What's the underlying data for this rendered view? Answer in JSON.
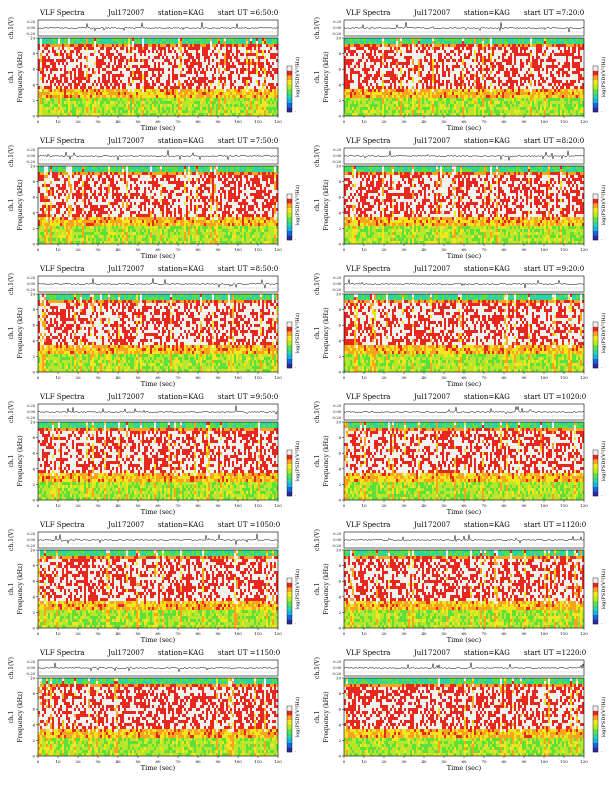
{
  "page": {
    "colors": {
      "colormap": [
        "#2a2aa0",
        "#1565d8",
        "#17b3e6",
        "#2ed4a0",
        "#5ee03c",
        "#b9e62a",
        "#f2e61c",
        "#f7a51f",
        "#e8281e",
        "#f2f2ee"
      ],
      "trace": "#000000",
      "background": "#ffffff"
    }
  },
  "panels": [
    {
      "title": "VLF Spectra",
      "date": "Jul172007",
      "station": "station=KAG",
      "start": "start  UT  =6:50:0",
      "ylabel_top": "ch.1(V)",
      "ytick_top": [
        "0.20",
        "0.00",
        "-0.20"
      ],
      "ylabel": "Frequency  (kHz)",
      "yticks": [
        "0",
        "2",
        "4",
        "6",
        "8",
        "10"
      ],
      "xlabel": "Time  (sec)",
      "xticks": [
        "0",
        "10",
        "20",
        "30",
        "40",
        "50",
        "60",
        "70",
        "80",
        "90",
        "100",
        "110",
        "120"
      ],
      "colorbar_label": "log(PSD)(V²/Hz)",
      "colorbar_ticks": [
        "-",
        "-"
      ]
    },
    {
      "title": "VLF Spectra",
      "date": "Jul172007",
      "station": "station=KAG",
      "start": "start  UT  =7:20:0",
      "ylabel_top": "ch.1(V)",
      "ytick_top": [
        "0.20",
        "0.00",
        "-0.20"
      ],
      "ylabel": "Frequency  (kHz)",
      "yticks": [
        "0",
        "2",
        "4",
        "6",
        "8",
        "10"
      ],
      "xlabel": "Time  (sec)",
      "xticks": [
        "0",
        "10",
        "20",
        "30",
        "40",
        "50",
        "60",
        "70",
        "80",
        "90",
        "100",
        "110",
        "120"
      ],
      "colorbar_label": "log(PSD)(V²/Hz)",
      "colorbar_ticks": [
        "-",
        "-"
      ]
    },
    {
      "title": "VLF Spectra",
      "date": "Jul172007",
      "station": "station=KAG",
      "start": "start  UT  =7:50:0",
      "ylabel_top": "ch.1(V)",
      "ytick_top": [
        "0.20",
        "0.00",
        "-0.20"
      ],
      "ylabel": "Frequency  (kHz)",
      "yticks": [
        "0",
        "2",
        "4",
        "6",
        "8",
        "10"
      ],
      "xlabel": "Time  (sec)",
      "xticks": [
        "0",
        "10",
        "20",
        "30",
        "40",
        "50",
        "60",
        "70",
        "80",
        "90",
        "100",
        "110",
        "120"
      ],
      "colorbar_label": "log(PSD)(V²/Hz)",
      "colorbar_ticks": [
        "-",
        "-"
      ]
    },
    {
      "title": "VLF Spectra",
      "date": "Jul172007",
      "station": "station=KAG",
      "start": "start  UT  =8:20:0",
      "ylabel_top": "ch.1(V)",
      "ytick_top": [
        "0.20",
        "0.00",
        "-0.20"
      ],
      "ylabel": "Frequency  (kHz)",
      "yticks": [
        "0",
        "2",
        "4",
        "6",
        "8",
        "10"
      ],
      "xlabel": "Time  (sec)",
      "xticks": [
        "0",
        "10",
        "20",
        "30",
        "40",
        "50",
        "60",
        "70",
        "80",
        "90",
        "100",
        "110",
        "120"
      ],
      "colorbar_label": "log(PSD)(V²/Hz)",
      "colorbar_ticks": [
        "-",
        "-"
      ]
    },
    {
      "title": "VLF Spectra",
      "date": "Jul172007",
      "station": "station=KAG",
      "start": "start  UT  =8:50:0",
      "ylabel_top": "ch.1(V)",
      "ytick_top": [
        "0.20",
        "0.00",
        "-0.20"
      ],
      "ylabel": "Frequency  (kHz)",
      "yticks": [
        "0",
        "2",
        "4",
        "6",
        "8",
        "10"
      ],
      "xlabel": "Time  (sec)",
      "xticks": [
        "0",
        "10",
        "20",
        "30",
        "40",
        "50",
        "60",
        "70",
        "80",
        "90",
        "100",
        "110",
        "120"
      ],
      "colorbar_label": "log(PSD)(V²/Hz)",
      "colorbar_ticks": [
        "-",
        "-"
      ]
    },
    {
      "title": "VLF Spectra",
      "date": "Jul172007",
      "station": "station=KAG",
      "start": "start  UT  =9:20:0",
      "ylabel_top": "ch.1(V)",
      "ytick_top": [
        "0.20",
        "0.00",
        "-0.20"
      ],
      "ylabel": "Frequency  (kHz)",
      "yticks": [
        "0",
        "2",
        "4",
        "6",
        "8",
        "10"
      ],
      "xlabel": "Time  (sec)",
      "xticks": [
        "0",
        "10",
        "20",
        "30",
        "40",
        "50",
        "60",
        "70",
        "80",
        "90",
        "100",
        "110",
        "120"
      ],
      "colorbar_label": "log(PSD)(V²/Hz)",
      "colorbar_ticks": [
        "-",
        "-"
      ]
    },
    {
      "title": "VLF Spectra",
      "date": "Jul172007",
      "station": "station=KAG",
      "start": "start  UT  =9:50:0",
      "ylabel_top": "ch.1(V)",
      "ytick_top": [
        "0.20",
        "0.00",
        "-0.20"
      ],
      "ylabel": "Frequency  (kHz)",
      "yticks": [
        "0",
        "2",
        "4",
        "6",
        "8",
        "10"
      ],
      "xlabel": "Time  (sec)",
      "xticks": [
        "0",
        "10",
        "20",
        "30",
        "40",
        "50",
        "60",
        "70",
        "80",
        "90",
        "100",
        "110",
        "120"
      ],
      "colorbar_label": "log(PSD)(V²/Hz)",
      "colorbar_ticks": [
        "-",
        "-"
      ]
    },
    {
      "title": "VLF Spectra",
      "date": "Jul172007",
      "station": "station=KAG",
      "start": "start  UT  =1020:0",
      "ylabel_top": "ch.1(V)",
      "ytick_top": [
        "0.20",
        "0.00",
        "-0.20"
      ],
      "ylabel": "Frequency  (kHz)",
      "yticks": [
        "0",
        "2",
        "4",
        "6",
        "8",
        "10"
      ],
      "xlabel": "Time  (sec)",
      "xticks": [
        "0",
        "10",
        "20",
        "30",
        "40",
        "50",
        "60",
        "70",
        "80",
        "90",
        "100",
        "110",
        "120"
      ],
      "colorbar_label": "log(PSD)(V²/Hz)",
      "colorbar_ticks": [
        "-",
        "-"
      ]
    },
    {
      "title": "VLF Spectra",
      "date": "Jul172007",
      "station": "station=KAG",
      "start": "start  UT  =1050:0",
      "ylabel_top": "ch.1(V)",
      "ytick_top": [
        "0.20",
        "0.00",
        "-0.20"
      ],
      "ylabel": "Frequency  (kHz)",
      "yticks": [
        "0",
        "2",
        "4",
        "6",
        "8",
        "10"
      ],
      "xlabel": "Time  (sec)",
      "xticks": [
        "0",
        "10",
        "20",
        "30",
        "40",
        "50",
        "60",
        "70",
        "80",
        "90",
        "100",
        "110",
        "120"
      ],
      "colorbar_label": "log(PSD)(V²/Hz)",
      "colorbar_ticks": [
        "-",
        "-"
      ]
    },
    {
      "title": "VLF Spectra",
      "date": "Jul172007",
      "station": "station=KAG",
      "start": "start  UT  =1120:0",
      "ylabel_top": "ch.1(V)",
      "ytick_top": [
        "0.20",
        "0.00",
        "-0.20"
      ],
      "ylabel": "Frequency  (kHz)",
      "yticks": [
        "0",
        "2",
        "4",
        "6",
        "8",
        "10"
      ],
      "xlabel": "Time  (sec)",
      "xticks": [
        "0",
        "10",
        "20",
        "30",
        "40",
        "50",
        "60",
        "70",
        "80",
        "90",
        "100",
        "110",
        "120"
      ],
      "colorbar_label": "log(PSD)(V²/Hz)",
      "colorbar_ticks": [
        "-",
        "-"
      ]
    },
    {
      "title": "VLF Spectra",
      "date": "Jul172007",
      "station": "station=KAG",
      "start": "start  UT  =1150:0",
      "ylabel_top": "ch.1(V)",
      "ytick_top": [
        "0.20",
        "0.00",
        "-0.20"
      ],
      "ylabel": "Frequency  (kHz)",
      "yticks": [
        "0",
        "2",
        "4",
        "6",
        "8",
        "10"
      ],
      "xlabel": "Time  (sec)",
      "xticks": [
        "0",
        "10",
        "20",
        "30",
        "40",
        "50",
        "60",
        "70",
        "80",
        "90",
        "100",
        "110",
        "120"
      ],
      "colorbar_label": "log(PSD)(V²/Hz)",
      "colorbar_ticks": [
        "-",
        "-"
      ]
    },
    {
      "title": "VLF Spectra",
      "date": "Jul172007",
      "station": "station=KAG",
      "start": "start  UT  =1220:0",
      "ylabel_top": "ch.1(V)",
      "ytick_top": [
        "0.20",
        "0.00",
        "-0.20"
      ],
      "ylabel": "Frequency  (kHz)",
      "yticks": [
        "0",
        "2",
        "4",
        "6",
        "8",
        "10"
      ],
      "xlabel": "Time  (sec)",
      "xticks": [
        "0",
        "10",
        "20",
        "30",
        "40",
        "50",
        "60",
        "70",
        "80",
        "90",
        "100",
        "110",
        "120"
      ],
      "colorbar_label": "log(PSD)(V²/Hz)",
      "colorbar_ticks": [
        "-",
        "-"
      ]
    }
  ],
  "chart_data": [
    {
      "type": "heatmap",
      "panel": 1,
      "start_ut": "6:50:0",
      "xlim": [
        0,
        120
      ],
      "ylim": [
        0,
        10
      ],
      "top_trace_ylim": [
        -0.2,
        0.2
      ],
      "grid": false,
      "colorbar": "right",
      "strong_band_khz": [
        4,
        9
      ],
      "weak_band_khz": [
        0,
        3
      ]
    },
    {
      "type": "heatmap",
      "panel": 2,
      "start_ut": "7:20:0",
      "xlim": [
        0,
        120
      ],
      "ylim": [
        0,
        10
      ],
      "top_trace_ylim": [
        -0.2,
        0.2
      ],
      "grid": false,
      "colorbar": "right",
      "strong_band_khz": [
        4,
        9
      ],
      "weak_band_khz": [
        0,
        3
      ]
    },
    {
      "type": "heatmap",
      "panel": 3,
      "start_ut": "7:50:0",
      "xlim": [
        0,
        120
      ],
      "ylim": [
        0,
        10
      ],
      "top_trace_ylim": [
        -0.2,
        0.2
      ],
      "grid": false,
      "colorbar": "right",
      "strong_band_khz": [
        4,
        9
      ],
      "weak_band_khz": [
        0,
        3
      ]
    },
    {
      "type": "heatmap",
      "panel": 4,
      "start_ut": "8:20:0",
      "xlim": [
        0,
        120
      ],
      "ylim": [
        0,
        10
      ],
      "top_trace_ylim": [
        -0.2,
        0.2
      ],
      "grid": false,
      "colorbar": "right",
      "strong_band_khz": [
        4,
        9
      ],
      "weak_band_khz": [
        0,
        3
      ]
    },
    {
      "type": "heatmap",
      "panel": 5,
      "start_ut": "8:50:0",
      "xlim": [
        0,
        120
      ],
      "ylim": [
        0,
        10
      ],
      "top_trace_ylim": [
        -0.2,
        0.2
      ],
      "grid": false,
      "colorbar": "right",
      "strong_band_khz": [
        4,
        9
      ],
      "weak_band_khz": [
        0,
        3
      ]
    },
    {
      "type": "heatmap",
      "panel": 6,
      "start_ut": "9:20:0",
      "xlim": [
        0,
        120
      ],
      "ylim": [
        0,
        10
      ],
      "top_trace_ylim": [
        -0.2,
        0.2
      ],
      "grid": false,
      "colorbar": "right",
      "strong_band_khz": [
        4,
        9
      ],
      "weak_band_khz": [
        0,
        3
      ]
    },
    {
      "type": "heatmap",
      "panel": 7,
      "start_ut": "9:50:0",
      "xlim": [
        0,
        120
      ],
      "ylim": [
        0,
        10
      ],
      "top_trace_ylim": [
        -0.2,
        0.2
      ],
      "grid": false,
      "colorbar": "right",
      "strong_band_khz": [
        4,
        9
      ],
      "weak_band_khz": [
        0,
        3
      ]
    },
    {
      "type": "heatmap",
      "panel": 8,
      "start_ut": "1020:0",
      "xlim": [
        0,
        120
      ],
      "ylim": [
        0,
        10
      ],
      "top_trace_ylim": [
        -0.2,
        0.2
      ],
      "grid": false,
      "colorbar": "right",
      "strong_band_khz": [
        4,
        9
      ],
      "weak_band_khz": [
        0,
        3
      ]
    },
    {
      "type": "heatmap",
      "panel": 9,
      "start_ut": "1050:0",
      "xlim": [
        0,
        120
      ],
      "ylim": [
        0,
        10
      ],
      "top_trace_ylim": [
        -0.2,
        0.2
      ],
      "grid": false,
      "colorbar": "right",
      "strong_band_khz": [
        4,
        9
      ],
      "weak_band_khz": [
        0,
        3
      ]
    },
    {
      "type": "heatmap",
      "panel": 10,
      "start_ut": "1120:0",
      "xlim": [
        0,
        120
      ],
      "ylim": [
        0,
        10
      ],
      "top_trace_ylim": [
        -0.2,
        0.2
      ],
      "grid": false,
      "colorbar": "right",
      "strong_band_khz": [
        4,
        9
      ],
      "weak_band_khz": [
        0,
        3
      ]
    },
    {
      "type": "heatmap",
      "panel": 11,
      "start_ut": "1150:0",
      "xlim": [
        0,
        120
      ],
      "ylim": [
        0,
        10
      ],
      "top_trace_ylim": [
        -0.2,
        0.2
      ],
      "grid": false,
      "colorbar": "right",
      "strong_band_khz": [
        4,
        9
      ],
      "weak_band_khz": [
        0,
        3
      ]
    },
    {
      "type": "heatmap",
      "panel": 12,
      "start_ut": "1220:0",
      "xlim": [
        0,
        120
      ],
      "ylim": [
        0,
        10
      ],
      "top_trace_ylim": [
        -0.2,
        0.2
      ],
      "grid": false,
      "colorbar": "right",
      "strong_band_khz": [
        4,
        9
      ],
      "weak_band_khz": [
        0,
        3
      ]
    }
  ]
}
